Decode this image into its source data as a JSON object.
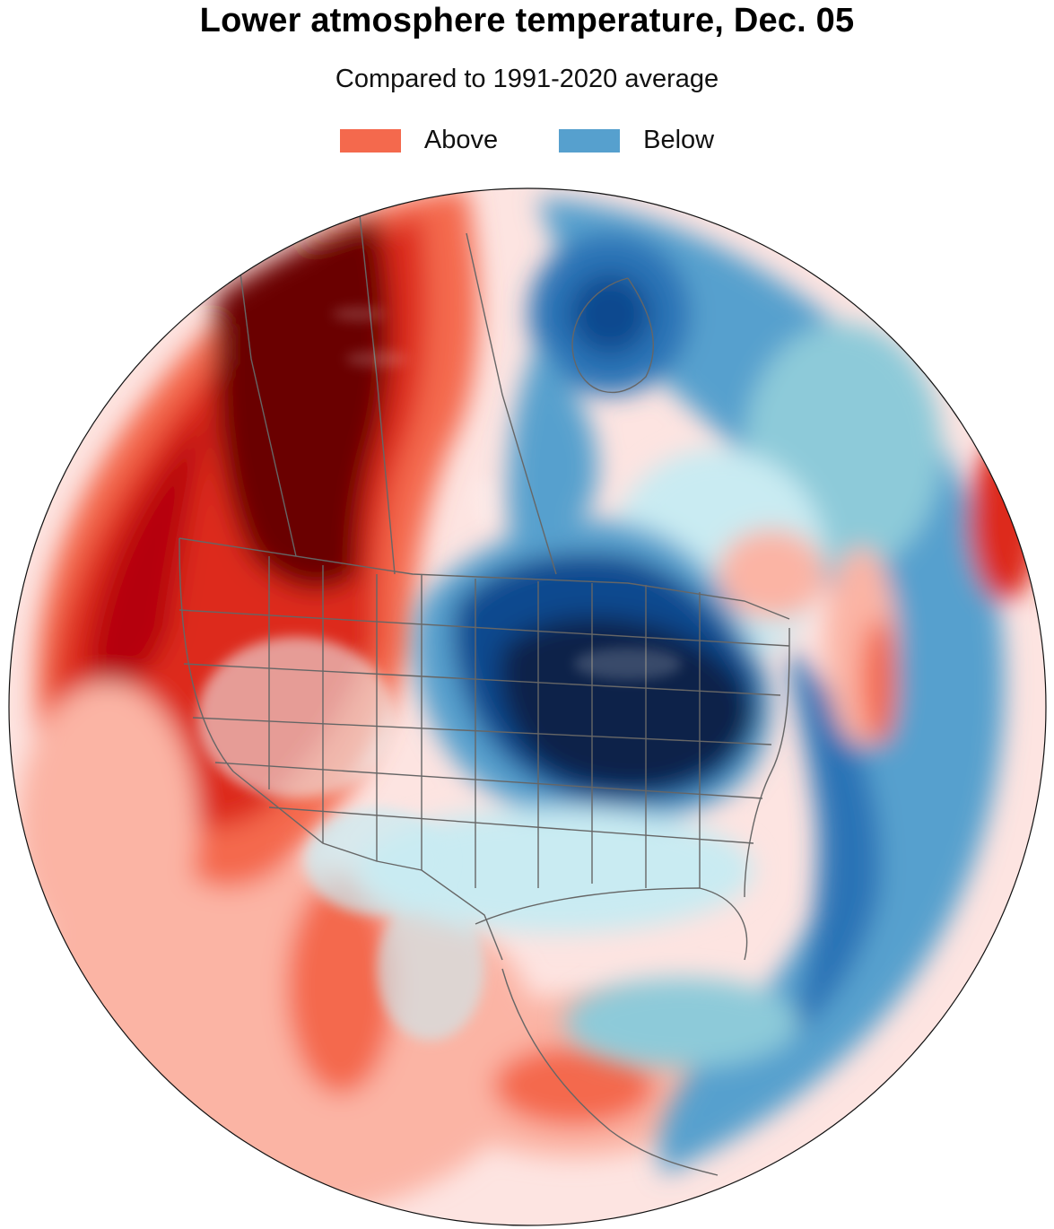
{
  "title": "Lower atmosphere temperature, Dec. 05",
  "subtitle": "Compared to 1991-2020 average",
  "legend": [
    {
      "label": "Above",
      "color": "#f4694d"
    },
    {
      "label": "Below",
      "color": "#56a0ce"
    }
  ],
  "colors": {
    "extreme_warm": "#6a0000",
    "strong_warm": "#b5000f",
    "warm": "#dd2b1f",
    "moderate_warm": "#f4694d",
    "light_warm": "#fbb4a4",
    "faint_warm": "#fde4e1",
    "neutral": "#eef9fc",
    "faint_cool": "#c9ebf2",
    "light_cool": "#8dcad9",
    "cool": "#56a0ce",
    "moderate_cool": "#2b73b6",
    "strong_cool": "#0d4a8f",
    "extreme_cool": "#08214a",
    "borders": "#666666",
    "globe_outline": "#111111"
  }
}
